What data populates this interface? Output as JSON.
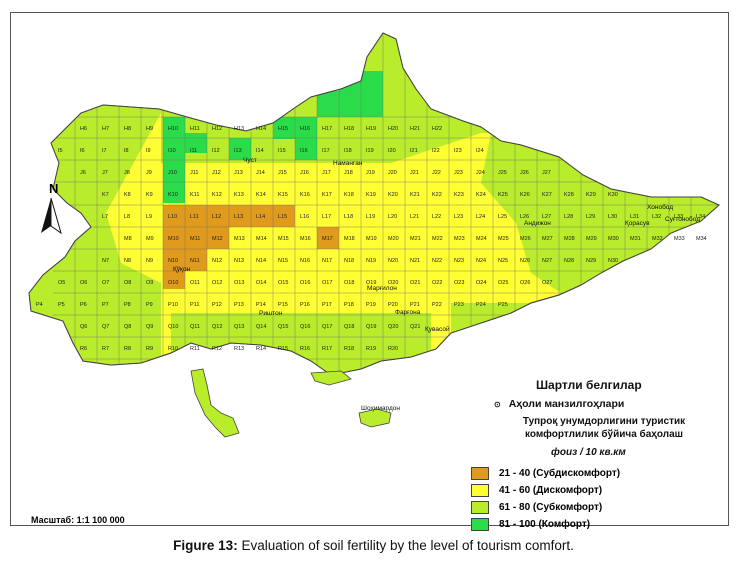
{
  "legend": {
    "title": "Шартли белгилар",
    "settlements": "Аҳоли манзилгоҳлари",
    "subtitle_line1": "Тупроқ унумдорлигини туристик",
    "subtitle_line2": "комфортлилик  бўйича баҳолаш",
    "unit": "фоиз / 10 кв.км",
    "items": [
      {
        "label": "21 - 40 (Субдискомфорт)",
        "color": "#e09a1c"
      },
      {
        "label": "41 - 60 (Дискомфорт)",
        "color": "#ffff33"
      },
      {
        "label": "61 - 80 (Субкомфорт)",
        "color": "#b9ec2a"
      },
      {
        "label": "81 - 100 (Комфорт)",
        "color": "#2bdc4a"
      }
    ]
  },
  "scale": "Масштаб: 1:1 100 000",
  "north": "N",
  "caption": {
    "bold": "Figure 13:",
    "text": " Evaluation of soil fertility by the level of tourism comfort."
  },
  "cities": [
    "Наманган",
    "Чуст",
    "Андижон",
    "Қорасув",
    "Хонобод",
    "Суғтонобод",
    "Марғилон",
    "Фарғона",
    "Қувасой",
    "Риштон",
    "Қўқон",
    "Шоҳимардон"
  ],
  "grid": {
    "rows": [
      "H",
      "I",
      "J",
      "K",
      "L",
      "M",
      "N",
      "O",
      "P",
      "Q",
      "R"
    ],
    "comfort_cells": [
      "H10",
      "H11",
      "I10",
      "J10",
      "K10",
      "J11",
      "K11",
      "I13",
      "I15",
      "I16",
      "H16",
      "H17",
      "G17",
      "F18",
      "F19",
      "G19",
      "F20",
      "G20"
    ],
    "subdiscomfort_cells": [
      "L10",
      "L11",
      "L12",
      "L13",
      "L14",
      "L15",
      "M10",
      "M11",
      "M12",
      "N10",
      "N11",
      "O10",
      "M17"
    ]
  }
}
